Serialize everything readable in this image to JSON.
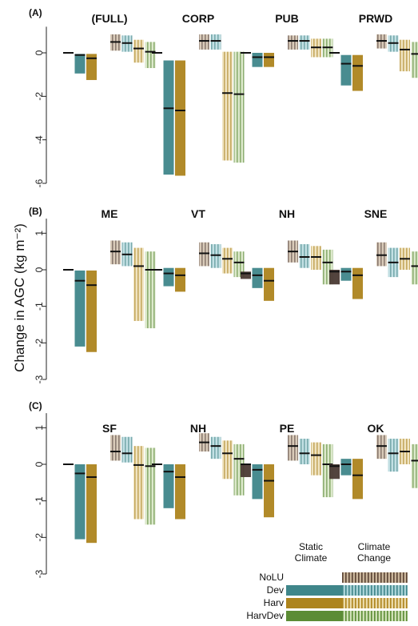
{
  "ylabel": "Change in AGC (kg m⁻²)",
  "colors": {
    "NoLU": "#4a3a34",
    "Dev": "#3f868a",
    "Harv": "#ad841d",
    "HarvDev": "#5c8c35"
  },
  "legend": {
    "col_static": [
      "Static",
      "Climate"
    ],
    "col_change": [
      "Climate",
      "Change"
    ],
    "rows": [
      "NoLU",
      "Dev",
      "Harv",
      "HarvDev"
    ]
  },
  "chart_data": [
    {
      "row": "(A)",
      "type": "box",
      "ylim": [
        -6,
        1.2
      ],
      "yticks": [
        0,
        -2,
        -4,
        -6
      ],
      "scenarios": [
        "NoLU-static",
        "Dev-static",
        "Harv-static",
        "HarvDev-static",
        "NoLU-cc",
        "Dev-cc",
        "Harv-cc",
        "HarvDev-cc"
      ],
      "panels": [
        {
          "title": "(FULL)",
          "bars": [
            [
              0,
              0,
              0
            ],
            [
              -0.05,
              -0.95,
              -0.1
            ],
            [
              -0.05,
              -1.25,
              -0.25
            ],
            null,
            [
              0.85,
              0.1,
              0.5
            ],
            [
              0.8,
              0.05,
              0.45
            ],
            [
              0.6,
              -0.45,
              0.2
            ],
            [
              0.5,
              -0.7,
              0.05
            ]
          ]
        },
        {
          "title": "CORP",
          "bars": [
            [
              0,
              0,
              0
            ],
            [
              -0.35,
              -5.6,
              -2.55
            ],
            [
              -0.35,
              -5.65,
              -2.65
            ],
            null,
            [
              0.85,
              0.15,
              0.55
            ],
            [
              0.85,
              0.15,
              0.55
            ],
            [
              0.05,
              -4.95,
              -1.85
            ],
            [
              0.05,
              -5.05,
              -1.9
            ]
          ]
        },
        {
          "title": "PUB",
          "bars": [
            [
              0,
              0,
              0
            ],
            [
              0,
              -0.65,
              -0.2
            ],
            [
              0,
              -0.65,
              -0.2
            ],
            null,
            [
              0.8,
              0.15,
              0.55
            ],
            [
              0.8,
              0.15,
              0.55
            ],
            [
              0.65,
              -0.2,
              0.25
            ],
            [
              0.65,
              -0.2,
              0.25
            ]
          ]
        },
        {
          "title": "PRWD",
          "bars": [
            [
              0,
              0,
              0
            ],
            [
              -0.1,
              -1.5,
              -0.5
            ],
            [
              -0.1,
              -1.75,
              -0.6
            ],
            null,
            [
              0.85,
              0.2,
              0.55
            ],
            [
              0.8,
              0.05,
              0.45
            ],
            [
              0.6,
              -0.85,
              0.15
            ],
            [
              0.5,
              -1.15,
              -0.05
            ]
          ]
        }
      ]
    },
    {
      "row": "(B)",
      "type": "box",
      "ylim": [
        -3,
        1.4
      ],
      "yticks": [
        1,
        0,
        -1,
        -2,
        -3
      ],
      "scenarios": [
        "NoLU-static",
        "Dev-static",
        "Harv-static",
        "HarvDev-static",
        "NoLU-cc",
        "Dev-cc",
        "Harv-cc",
        "HarvDev-cc"
      ],
      "panels": [
        {
          "title": "ME",
          "bars": [
            [
              0,
              0,
              0
            ],
            [
              -0.02,
              -2.1,
              -0.3
            ],
            [
              -0.02,
              -2.25,
              -0.42
            ],
            null,
            [
              0.8,
              0.15,
              0.5
            ],
            [
              0.75,
              0.1,
              0.42
            ],
            [
              0.6,
              -1.4,
              0.1
            ],
            [
              0.5,
              -1.6,
              0.0
            ]
          ]
        },
        {
          "title": "VT",
          "bars": [
            [
              0,
              0,
              0
            ],
            [
              0.05,
              -0.45,
              -0.1
            ],
            [
              0.05,
              -0.6,
              -0.15
            ],
            null,
            [
              0.75,
              0.1,
              0.45
            ],
            [
              0.7,
              0.05,
              0.4
            ],
            [
              0.6,
              -0.1,
              0.3
            ],
            [
              0.5,
              -0.2,
              0.2
            ]
          ]
        },
        {
          "title": "NH",
          "bars": [
            [
              -0.05,
              -0.25,
              -0.1
            ],
            [
              0.05,
              -0.5,
              -0.15
            ],
            [
              0.05,
              -0.85,
              -0.3
            ],
            null,
            [
              0.8,
              0.2,
              0.5
            ],
            [
              0.7,
              0.05,
              0.35
            ],
            [
              0.65,
              0.0,
              0.35
            ],
            [
              0.55,
              -0.4,
              0.2
            ]
          ]
        },
        {
          "title": "SNE",
          "bars": [
            [
              0,
              -0.4,
              -0.05
            ],
            [
              0.05,
              -0.3,
              -0.05
            ],
            [
              0.05,
              -0.8,
              -0.15
            ],
            null,
            [
              0.75,
              0.1,
              0.4
            ],
            [
              0.6,
              -0.2,
              0.2
            ],
            [
              0.6,
              0.0,
              0.3
            ],
            [
              0.5,
              -0.4,
              0.1
            ]
          ]
        }
      ]
    },
    {
      "row": "(C)",
      "type": "box",
      "ylim": [
        -3,
        1.4
      ],
      "yticks": [
        1,
        0,
        -1,
        -2,
        -3
      ],
      "scenarios": [
        "NoLU-static",
        "Dev-static",
        "Harv-static",
        "HarvDev-static",
        "NoLU-cc",
        "Dev-cc",
        "Harv-cc",
        "HarvDev-cc"
      ],
      "panels": [
        {
          "title": "SF",
          "bars": [
            [
              0,
              0,
              0
            ],
            [
              0,
              -2.05,
              -0.25
            ],
            [
              0,
              -2.15,
              -0.35
            ],
            null,
            [
              0.8,
              0.1,
              0.35
            ],
            [
              0.75,
              0.05,
              0.3
            ],
            [
              0.5,
              -1.5,
              -0.02
            ],
            [
              0.45,
              -1.65,
              -0.05
            ]
          ]
        },
        {
          "title": "NH",
          "bars": [
            [
              0,
              0,
              0
            ],
            [
              0,
              -1.2,
              -0.2
            ],
            [
              0,
              -1.5,
              -0.35
            ],
            null,
            [
              0.85,
              0.35,
              0.6
            ],
            [
              0.75,
              0.15,
              0.5
            ],
            [
              0.65,
              -0.4,
              0.3
            ],
            [
              0.55,
              -0.85,
              0.15
            ]
          ]
        },
        {
          "title": "PE",
          "bars": [
            [
              0,
              -0.35,
              0
            ],
            [
              0,
              -0.95,
              -0.15
            ],
            [
              0,
              -1.45,
              -0.45
            ],
            null,
            [
              0.8,
              0.1,
              0.5
            ],
            [
              0.7,
              0.0,
              0.3
            ],
            [
              0.6,
              -0.3,
              0.25
            ],
            [
              0.55,
              -0.9,
              0.0
            ]
          ]
        },
        {
          "title": "OK",
          "bars": [
            [
              0,
              -0.4,
              -0.05
            ],
            [
              0.15,
              -0.3,
              0.0
            ],
            [
              0.15,
              -0.95,
              -0.3
            ],
            null,
            [
              0.8,
              0.15,
              0.5
            ],
            [
              0.7,
              -0.2,
              0.3
            ],
            [
              0.7,
              0.0,
              0.35
            ],
            [
              0.55,
              -0.65,
              0.1
            ]
          ]
        }
      ]
    }
  ]
}
